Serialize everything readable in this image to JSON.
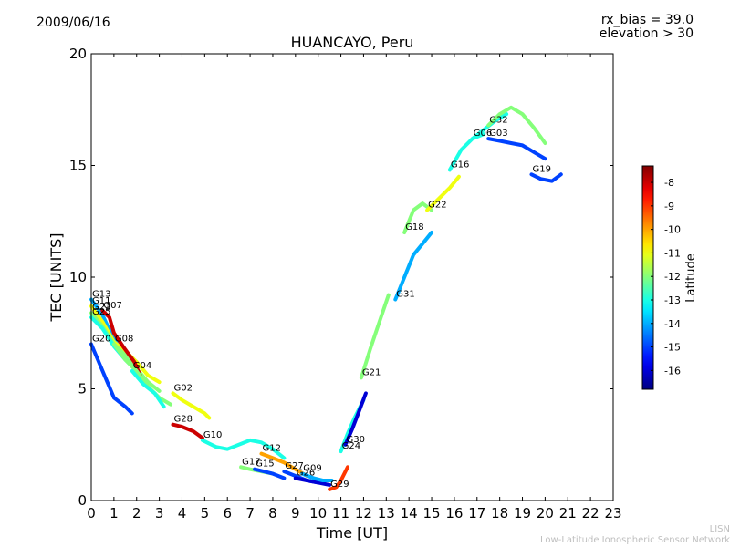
{
  "header": {
    "date": "2009/06/16",
    "rx_bias": "rx_bias = 39.0",
    "elevation": "elevation > 30"
  },
  "footer": {
    "line1": "LISN",
    "line2": "Low-Latitude Ionospheric Sensor Network"
  },
  "chart_data": {
    "type": "scatter",
    "title": "HUANCAYO, Peru",
    "xlabel": "Time [UT]",
    "ylabel": "TEC [UNITS]",
    "xlim": [
      0,
      23
    ],
    "ylim": [
      0,
      20
    ],
    "xticks": [
      0,
      1,
      2,
      3,
      4,
      5,
      6,
      7,
      8,
      9,
      10,
      11,
      12,
      13,
      14,
      15,
      16,
      17,
      18,
      19,
      20,
      21,
      22,
      23
    ],
    "yticks": [
      0,
      5,
      10,
      15,
      20
    ],
    "grid": false,
    "colorbar": {
      "label": "Latitude",
      "range": [
        -16.8,
        -7.3
      ],
      "ticks": [
        -8,
        -9,
        -10,
        -11,
        -12,
        -13,
        -14,
        -15,
        -16
      ]
    },
    "series": [
      {
        "name": "G13",
        "color_lat": -14,
        "points": [
          [
            0,
            9.0
          ],
          [
            0.5,
            8.3
          ],
          [
            1,
            7.2
          ],
          [
            1.5,
            6.6
          ],
          [
            2,
            6.2
          ]
        ]
      },
      {
        "name": "G11",
        "color_lat": -11,
        "points": [
          [
            0,
            8.7
          ],
          [
            0.5,
            8.0
          ],
          [
            1,
            7.1
          ],
          [
            1.5,
            6.7
          ],
          [
            2,
            6.2
          ],
          [
            2.5,
            5.6
          ],
          [
            3,
            5.3
          ]
        ]
      },
      {
        "name": "G23",
        "color_lat": -12,
        "points": [
          [
            0,
            8.4
          ],
          [
            0.5,
            7.8
          ],
          [
            1,
            7.0
          ],
          [
            1.5,
            6.5
          ],
          [
            2,
            5.9
          ],
          [
            2.5,
            5.3
          ],
          [
            3,
            4.9
          ]
        ]
      },
      {
        "name": "G07",
        "color_lat": -8,
        "points": [
          [
            0.5,
            8.5
          ],
          [
            0.8,
            8.2
          ],
          [
            1,
            7.5
          ],
          [
            1.4,
            6.9
          ],
          [
            1.9,
            6.2
          ],
          [
            2.2,
            5.5
          ]
        ]
      },
      {
        "name": "G25",
        "color_lat": -13,
        "points": [
          [
            0,
            8.2
          ],
          [
            0.5,
            7.7
          ],
          [
            1,
            6.9
          ],
          [
            1.5,
            6.3
          ],
          [
            2,
            5.8
          ]
        ]
      },
      {
        "name": "G20",
        "color_lat": -15,
        "points": [
          [
            0,
            7.0
          ],
          [
            0.5,
            5.8
          ],
          [
            1,
            4.6
          ],
          [
            1.5,
            4.2
          ],
          [
            1.8,
            3.9
          ]
        ]
      },
      {
        "name": "G08",
        "color_lat": -12,
        "points": [
          [
            1,
            7.0
          ],
          [
            1.5,
            6.3
          ],
          [
            2,
            5.8
          ],
          [
            2.5,
            5.1
          ],
          [
            3,
            4.6
          ],
          [
            3.5,
            4.3
          ]
        ]
      },
      {
        "name": "G04",
        "color_lat": -13,
        "points": [
          [
            1.8,
            5.8
          ],
          [
            2.3,
            5.2
          ],
          [
            2.8,
            4.8
          ],
          [
            3.2,
            4.2
          ]
        ]
      },
      {
        "name": "G02",
        "color_lat": -11,
        "points": [
          [
            3.6,
            4.8
          ],
          [
            4,
            4.5
          ],
          [
            4.5,
            4.2
          ],
          [
            5,
            3.9
          ],
          [
            5.2,
            3.7
          ]
        ]
      },
      {
        "name": "G28",
        "color_lat": -8,
        "points": [
          [
            3.6,
            3.4
          ],
          [
            4,
            3.3
          ],
          [
            4.5,
            3.1
          ],
          [
            4.9,
            2.8
          ]
        ]
      },
      {
        "name": "G10",
        "color_lat": -13,
        "points": [
          [
            4.9,
            2.7
          ],
          [
            5.5,
            2.4
          ],
          [
            6,
            2.3
          ],
          [
            6.5,
            2.5
          ],
          [
            7,
            2.7
          ],
          [
            7.5,
            2.6
          ],
          [
            8,
            2.3
          ],
          [
            8.5,
            1.9
          ]
        ]
      },
      {
        "name": "G17",
        "color_lat": -12,
        "points": [
          [
            6.6,
            1.5
          ],
          [
            7,
            1.4
          ],
          [
            7.5,
            1.3
          ],
          [
            8,
            1.2
          ]
        ]
      },
      {
        "name": "G15",
        "color_lat": -15,
        "points": [
          [
            7.2,
            1.4
          ],
          [
            7.6,
            1.3
          ],
          [
            8,
            1.2
          ],
          [
            8.5,
            1.0
          ]
        ]
      },
      {
        "name": "G12",
        "color_lat": -10,
        "points": [
          [
            7.5,
            2.1
          ],
          [
            8,
            1.9
          ],
          [
            8.5,
            1.7
          ],
          [
            9,
            1.4
          ],
          [
            9.5,
            1.1
          ]
        ]
      },
      {
        "name": "G27",
        "color_lat": -15,
        "points": [
          [
            8.5,
            1.3
          ],
          [
            9,
            1.1
          ],
          [
            9.5,
            0.9
          ],
          [
            10,
            0.8
          ]
        ]
      },
      {
        "name": "G26",
        "color_lat": -16,
        "points": [
          [
            9,
            1.0
          ],
          [
            9.5,
            0.9
          ],
          [
            10,
            0.8
          ],
          [
            10.5,
            0.7
          ]
        ]
      },
      {
        "name": "G09",
        "color_lat": -14,
        "points": [
          [
            9.3,
            1.2
          ],
          [
            9.8,
            1.0
          ],
          [
            10.2,
            0.9
          ],
          [
            10.6,
            0.9
          ]
        ]
      },
      {
        "name": "G29",
        "color_lat": -9,
        "points": [
          [
            10.5,
            0.5
          ],
          [
            10.8,
            0.6
          ],
          [
            11,
            0.9
          ],
          [
            11.3,
            1.5
          ]
        ]
      },
      {
        "name": "G24",
        "color_lat": -13,
        "points": [
          [
            11,
            2.2
          ],
          [
            11.3,
            3.0
          ],
          [
            11.6,
            3.7
          ],
          [
            12,
            4.5
          ]
        ]
      },
      {
        "name": "G30",
        "color_lat": -16,
        "points": [
          [
            11.2,
            2.5
          ],
          [
            11.5,
            3.2
          ],
          [
            11.8,
            4.0
          ],
          [
            12.1,
            4.8
          ]
        ]
      },
      {
        "name": "G21",
        "color_lat": -12,
        "points": [
          [
            11.9,
            5.5
          ],
          [
            12.3,
            6.8
          ],
          [
            12.7,
            8.0
          ],
          [
            13.1,
            9.2
          ]
        ]
      },
      {
        "name": "G31",
        "color_lat": -14,
        "points": [
          [
            13.4,
            9.0
          ],
          [
            13.8,
            10.0
          ],
          [
            14.2,
            11.0
          ],
          [
            14.6,
            11.5
          ],
          [
            15,
            12.0
          ]
        ]
      },
      {
        "name": "G18",
        "color_lat": -12,
        "points": [
          [
            13.8,
            12.0
          ],
          [
            14.2,
            13.0
          ],
          [
            14.6,
            13.3
          ],
          [
            15,
            13.0
          ]
        ]
      },
      {
        "name": "G22",
        "color_lat": -11,
        "points": [
          [
            14.8,
            13.0
          ],
          [
            15.3,
            13.5
          ],
          [
            15.8,
            14.0
          ],
          [
            16.2,
            14.5
          ]
        ]
      },
      {
        "name": "G16",
        "color_lat": -13,
        "points": [
          [
            15.8,
            14.8
          ],
          [
            16.3,
            15.7
          ],
          [
            16.8,
            16.2
          ],
          [
            17.3,
            16.4
          ]
        ]
      },
      {
        "name": "G06",
        "color_lat": -13,
        "points": [
          [
            16.8,
            16.2
          ],
          [
            17.3,
            16.6
          ],
          [
            17.8,
            17.0
          ],
          [
            18.3,
            17.3
          ]
        ]
      },
      {
        "name": "G03",
        "color_lat": -15,
        "points": [
          [
            17.5,
            16.2
          ],
          [
            18,
            16.1
          ],
          [
            18.5,
            16.0
          ],
          [
            19,
            15.9
          ],
          [
            19.5,
            15.6
          ],
          [
            20,
            15.3
          ]
        ]
      },
      {
        "name": "G32",
        "color_lat": -12,
        "points": [
          [
            17.5,
            16.8
          ],
          [
            18,
            17.3
          ],
          [
            18.5,
            17.6
          ],
          [
            19,
            17.3
          ],
          [
            19.5,
            16.7
          ],
          [
            20,
            16.0
          ]
        ]
      },
      {
        "name": "G19",
        "color_lat": -15,
        "points": [
          [
            19.4,
            14.6
          ],
          [
            19.8,
            14.4
          ],
          [
            20.3,
            14.3
          ],
          [
            20.7,
            14.6
          ]
        ]
      }
    ]
  }
}
